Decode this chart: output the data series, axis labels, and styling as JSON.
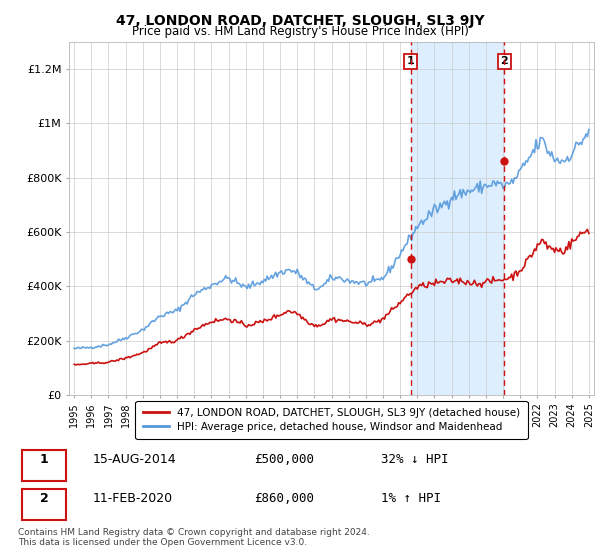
{
  "title": "47, LONDON ROAD, DATCHET, SLOUGH, SL3 9JY",
  "subtitle": "Price paid vs. HM Land Registry's House Price Index (HPI)",
  "hpi_color": "#5599dd",
  "price_color": "#cc1111",
  "plot_bg_color": "#ffffff",
  "fig_bg_color": "#ffffff",
  "ylabel_ticks": [
    "£0",
    "£200K",
    "£400K",
    "£600K",
    "£800K",
    "£1M",
    "£1.2M"
  ],
  "ylabel_values": [
    0,
    200000,
    400000,
    600000,
    800000,
    1000000,
    1200000
  ],
  "ylim": [
    0,
    1300000
  ],
  "xlim_start": 1994.7,
  "xlim_end": 2025.3,
  "transaction1_x": 2014.617,
  "transaction1_y": 500000,
  "transaction1_label": "1",
  "transaction2_x": 2020.08,
  "transaction2_y": 860000,
  "transaction2_label": "2",
  "shade_color": "#ddeeff",
  "legend_line1": "47, LONDON ROAD, DATCHET, SLOUGH, SL3 9JY (detached house)",
  "legend_line2": "HPI: Average price, detached house, Windsor and Maidenhead",
  "table_row1": [
    "1",
    "15-AUG-2014",
    "£500,000",
    "32% ↓ HPI"
  ],
  "table_row2": [
    "2",
    "11-FEB-2020",
    "£860,000",
    "1% ↑ HPI"
  ],
  "footnote": "Contains HM Land Registry data © Crown copyright and database right 2024.\nThis data is licensed under the Open Government Licence v3.0."
}
